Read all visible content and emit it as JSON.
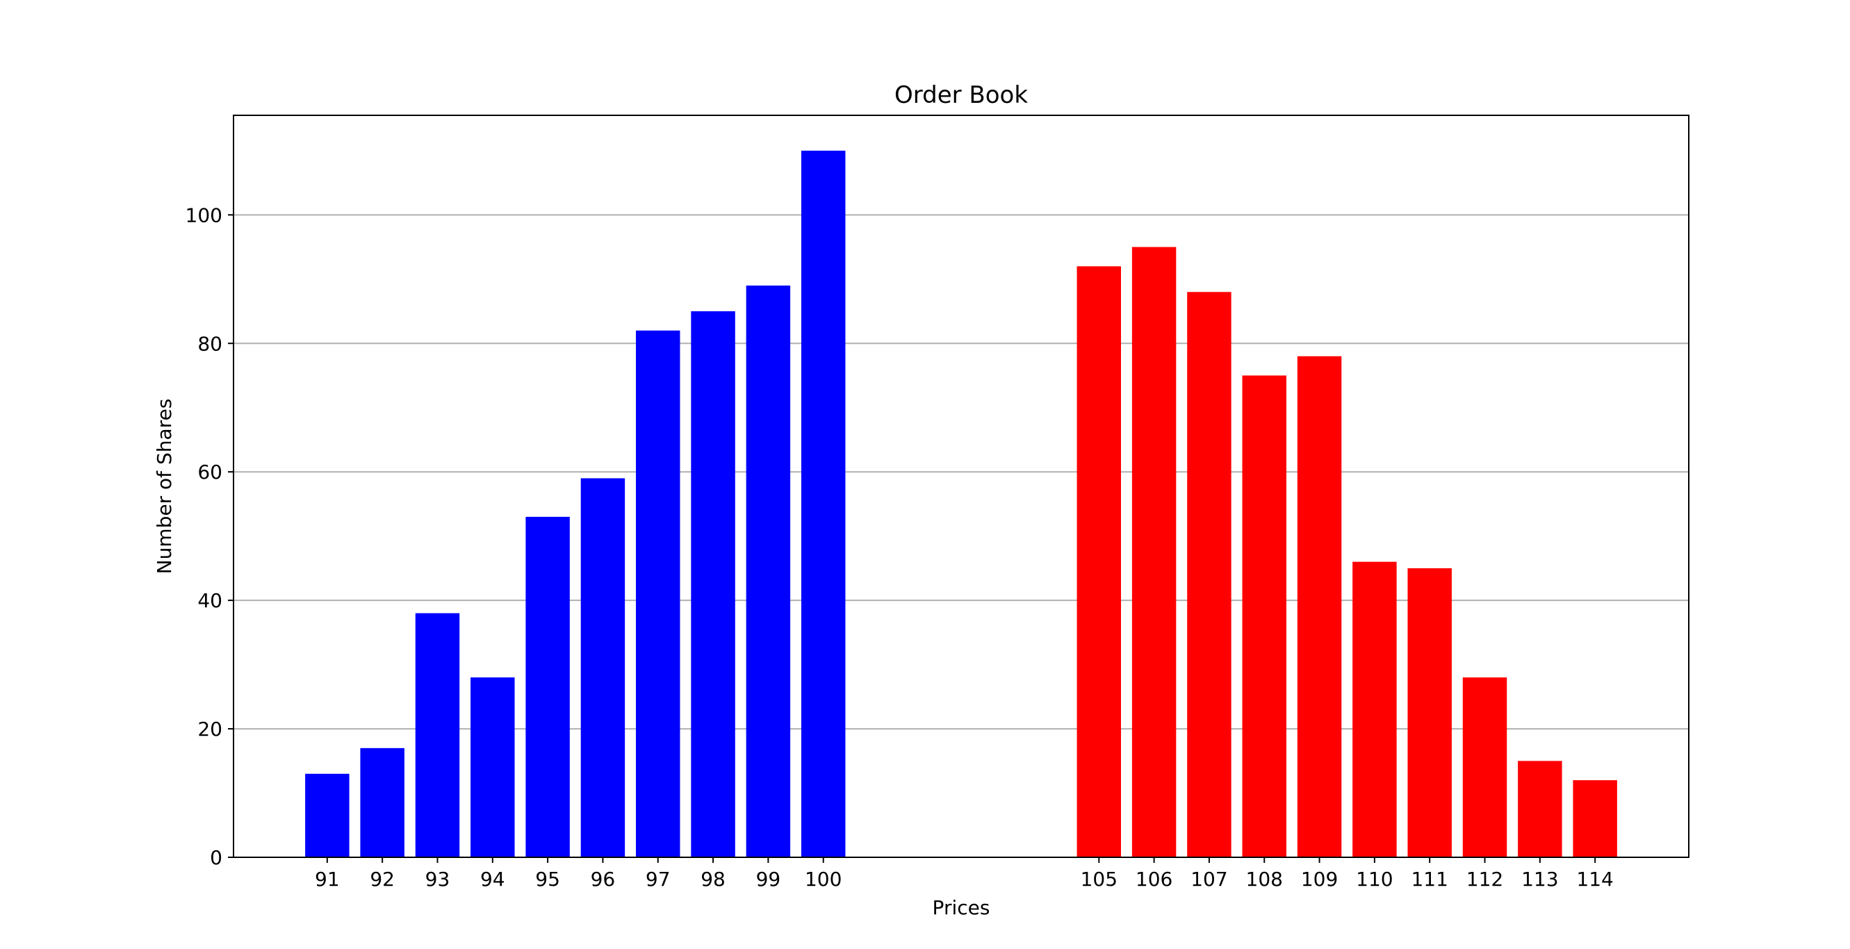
{
  "chart_data": {
    "type": "bar",
    "title": "Order Book",
    "xlabel": "Prices",
    "ylabel": "Number of Shares",
    "xlim": [
      89.3,
      115.7
    ],
    "ylim": [
      0,
      115.5
    ],
    "yticks": [
      0,
      20,
      40,
      60,
      80,
      100
    ],
    "grid": "y",
    "legend": "none",
    "series": [
      {
        "color": "#0000ff",
        "x": [
          91,
          92,
          93,
          94,
          95,
          96,
          97,
          98,
          99,
          100
        ],
        "values": [
          13,
          17,
          38,
          28,
          53,
          59,
          82,
          85,
          89,
          110
        ]
      },
      {
        "color": "#ff0000",
        "x": [
          105,
          106,
          107,
          108,
          109,
          110,
          111,
          112,
          113,
          114
        ],
        "values": [
          92,
          95,
          88,
          75,
          78,
          46,
          45,
          28,
          15,
          12
        ]
      }
    ]
  }
}
